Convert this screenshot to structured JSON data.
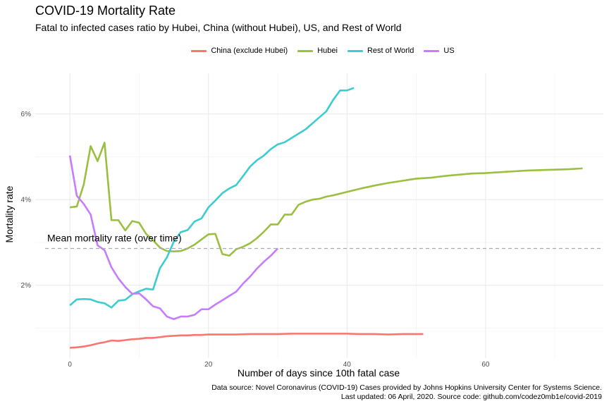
{
  "chart_data": {
    "type": "line",
    "title": "COVID-19 Mortality Rate",
    "subtitle": "Fatal to infected cases ratio by Hubei, China (without Hubei), US, and Rest of World",
    "xlabel": "Number of days since 10th fatal case",
    "ylabel": "Mortality rate",
    "xlim": [
      -5,
      77
    ],
    "ylim": [
      0.3,
      6.95
    ],
    "x_ticks": [
      0,
      20,
      40,
      60
    ],
    "y_ticks": [
      {
        "value": 2,
        "label": "2%"
      },
      {
        "value": 4,
        "label": "4%"
      },
      {
        "value": 6,
        "label": "6%"
      }
    ],
    "grid": true,
    "legend_position": "top",
    "reference_line": {
      "y": 2.86,
      "label": "Mean mortality rate (over time)",
      "style": "dashed",
      "color": "#aaaaaa"
    },
    "caption": [
      "Data source: Novel Coronavirus (COVID-19) Cases provided by Johns Hopkins University Center for Systems Science.",
      "Last updated: 06 April, 2020. Source code: github.com/codez0mb1e/covid-2019"
    ],
    "series": [
      {
        "name": "China (exclude Hubei)",
        "color": "#F8766D",
        "x": [
          0,
          1,
          2,
          3,
          4,
          5,
          6,
          7,
          8,
          9,
          10,
          11,
          12,
          13,
          14,
          15,
          16,
          17,
          18,
          19,
          20,
          22,
          24,
          26,
          28,
          30,
          32,
          34,
          36,
          38,
          40,
          42,
          44,
          46,
          48,
          50,
          51
        ],
        "y": [
          0.54,
          0.55,
          0.57,
          0.6,
          0.64,
          0.67,
          0.71,
          0.7,
          0.72,
          0.74,
          0.75,
          0.77,
          0.77,
          0.79,
          0.81,
          0.82,
          0.83,
          0.83,
          0.84,
          0.84,
          0.85,
          0.85,
          0.85,
          0.86,
          0.86,
          0.86,
          0.87,
          0.87,
          0.87,
          0.87,
          0.87,
          0.86,
          0.86,
          0.85,
          0.86,
          0.86,
          0.86
        ]
      },
      {
        "name": "Hubei",
        "color": "#9BBF40",
        "x": [
          0,
          1,
          2,
          3,
          4,
          5,
          6,
          7,
          8,
          9,
          10,
          11,
          12,
          13,
          14,
          15,
          16,
          17,
          18,
          19,
          20,
          21,
          22,
          23,
          24,
          25,
          26,
          27,
          28,
          29,
          30,
          31,
          32,
          33,
          34,
          35,
          36,
          37,
          38,
          40,
          42,
          44,
          46,
          48,
          50,
          52,
          54,
          56,
          58,
          60,
          62,
          64,
          66,
          68,
          70,
          72,
          74
        ],
        "y": [
          3.82,
          3.84,
          4.35,
          5.25,
          4.9,
          5.33,
          3.52,
          3.52,
          3.28,
          3.5,
          3.46,
          3.2,
          3.05,
          2.88,
          2.8,
          2.79,
          2.8,
          2.86,
          2.95,
          3.07,
          3.19,
          3.2,
          2.73,
          2.69,
          2.84,
          2.9,
          2.98,
          3.1,
          3.25,
          3.42,
          3.42,
          3.65,
          3.65,
          3.88,
          3.95,
          4.0,
          4.02,
          4.07,
          4.1,
          4.18,
          4.26,
          4.33,
          4.39,
          4.44,
          4.49,
          4.51,
          4.55,
          4.58,
          4.61,
          4.62,
          4.64,
          4.66,
          4.68,
          4.69,
          4.7,
          4.71,
          4.73
        ]
      },
      {
        "name": "Rest of World",
        "color": "#3DCCD0",
        "x": [
          0,
          1,
          2,
          3,
          4,
          5,
          6,
          7,
          8,
          9,
          10,
          11,
          12,
          13,
          14,
          15,
          16,
          17,
          18,
          19,
          20,
          21,
          22,
          23,
          24,
          25,
          26,
          27,
          28,
          29,
          30,
          31,
          32,
          33,
          34,
          35,
          36,
          37,
          38,
          39,
          40,
          41
        ],
        "y": [
          1.53,
          1.67,
          1.68,
          1.67,
          1.61,
          1.58,
          1.48,
          1.64,
          1.66,
          1.79,
          1.86,
          1.92,
          1.9,
          2.4,
          2.65,
          3.02,
          3.24,
          3.29,
          3.49,
          3.56,
          3.82,
          3.98,
          4.15,
          4.26,
          4.34,
          4.55,
          4.77,
          4.92,
          5.03,
          5.18,
          5.29,
          5.34,
          5.44,
          5.54,
          5.64,
          5.78,
          5.92,
          6.06,
          6.33,
          6.55,
          6.55,
          6.61
        ]
      },
      {
        "name": "US",
        "color": "#C77CFF",
        "x": [
          0,
          1,
          2,
          3,
          4,
          5,
          6,
          7,
          8,
          9,
          10,
          11,
          12,
          13,
          14,
          15,
          16,
          17,
          18,
          19,
          20,
          21,
          22,
          23,
          24,
          25,
          26,
          27,
          28,
          29,
          30
        ],
        "y": [
          5.03,
          4.09,
          3.9,
          3.65,
          2.93,
          2.82,
          2.42,
          2.16,
          1.96,
          1.8,
          1.81,
          1.67,
          1.51,
          1.46,
          1.27,
          1.21,
          1.27,
          1.27,
          1.31,
          1.44,
          1.44,
          1.55,
          1.65,
          1.75,
          1.85,
          2.04,
          2.2,
          2.39,
          2.55,
          2.69,
          2.86
        ]
      }
    ]
  }
}
